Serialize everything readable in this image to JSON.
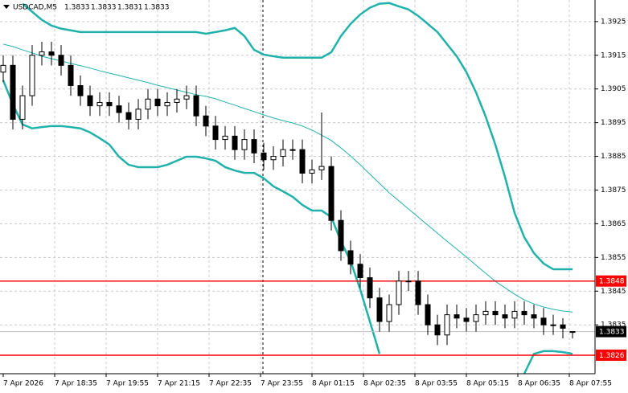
{
  "chart_data": {
    "type": "candlestick",
    "symbol": "USDCAD,M5",
    "x_labels": [
      "7 Apr 2026",
      "7 Apr 18:35",
      "7 Apr 19:55",
      "7 Apr 21:15",
      "7 Apr 22:35",
      "7 Apr 23:55",
      "8 Apr 01:15",
      "8 Apr 02:35",
      "8 Apr 03:55",
      "8 Apr 05:15",
      "8 Apr 06:35",
      "8 Apr 07:55"
    ],
    "open": [
      1.391,
      1.3912,
      1.3896,
      1.3903,
      1.3915,
      1.3916,
      1.3915,
      1.3912,
      1.3906,
      1.3903,
      1.39,
      1.3901,
      1.39,
      1.3898,
      1.3896,
      1.3899,
      1.3902,
      1.39,
      1.3901,
      1.3902,
      1.3903,
      1.3897,
      1.3894,
      1.389,
      1.3891,
      1.3887,
      1.389,
      1.3886,
      1.3884,
      1.3885,
      1.3887,
      1.3887,
      1.388,
      1.3881,
      1.3882,
      1.3866,
      1.3857,
      1.3853,
      1.3849,
      1.3843,
      1.3836,
      1.3841,
      1.3848,
      1.3848,
      1.3841,
      1.3835,
      1.3832,
      1.3838,
      1.3837,
      1.3836,
      1.3838,
      1.3839,
      1.3838,
      1.3837,
      1.3839,
      1.3838,
      1.3837,
      1.3835,
      1.3835,
      1.3833
    ],
    "high": [
      1.3915,
      1.3915,
      1.3906,
      1.3918,
      1.3919,
      1.3919,
      1.3918,
      1.3915,
      1.3909,
      1.3906,
      1.3904,
      1.3904,
      1.3903,
      1.3901,
      1.3902,
      1.3905,
      1.3905,
      1.3904,
      1.3905,
      1.3906,
      1.3906,
      1.39,
      1.3897,
      1.3894,
      1.3894,
      1.3893,
      1.3893,
      1.3889,
      1.3888,
      1.389,
      1.389,
      1.389,
      1.3884,
      1.3898,
      1.3885,
      1.3869,
      1.386,
      1.3856,
      1.3852,
      1.3846,
      1.3844,
      1.3851,
      1.3851,
      1.3851,
      1.3844,
      1.3838,
      1.3841,
      1.3841,
      1.384,
      1.3841,
      1.3842,
      1.3842,
      1.3841,
      1.3842,
      1.3842,
      1.3841,
      1.384,
      1.3838,
      1.3837,
      1.3833
    ],
    "low": [
      1.3907,
      1.3893,
      1.3893,
      1.39,
      1.3912,
      1.3912,
      1.3909,
      1.3903,
      1.39,
      1.3897,
      1.3897,
      1.3897,
      1.3895,
      1.3893,
      1.3893,
      1.3896,
      1.3897,
      1.3897,
      1.3898,
      1.3899,
      1.3894,
      1.3891,
      1.3887,
      1.3887,
      1.3884,
      1.3884,
      1.3883,
      1.3881,
      1.3881,
      1.3882,
      1.3884,
      1.3877,
      1.3877,
      1.3878,
      1.3863,
      1.3854,
      1.385,
      1.3846,
      1.384,
      1.3833,
      1.3833,
      1.3838,
      1.3845,
      1.3838,
      1.3832,
      1.3829,
      1.3829,
      1.3834,
      1.3833,
      1.3833,
      1.3835,
      1.3835,
      1.3834,
      1.3834,
      1.3835,
      1.3834,
      1.3832,
      1.3832,
      1.3831,
      1.3831
    ],
    "close": [
      1.3912,
      1.3896,
      1.3903,
      1.3915,
      1.3916,
      1.3915,
      1.3912,
      1.3906,
      1.3903,
      1.39,
      1.3901,
      1.39,
      1.3898,
      1.3896,
      1.3899,
      1.3902,
      1.39,
      1.3901,
      1.3902,
      1.3903,
      1.3897,
      1.3894,
      1.389,
      1.3891,
      1.3887,
      1.389,
      1.3886,
      1.3884,
      1.3885,
      1.3887,
      1.3887,
      1.388,
      1.3881,
      1.3882,
      1.3866,
      1.3857,
      1.3853,
      1.3849,
      1.3843,
      1.3836,
      1.3841,
      1.3848,
      1.3848,
      1.3841,
      1.3835,
      1.3832,
      1.3838,
      1.3837,
      1.3836,
      1.3838,
      1.3839,
      1.3838,
      1.3837,
      1.3839,
      1.3838,
      1.3837,
      1.3835,
      1.3835,
      1.3834,
      1.3833
    ],
    "bands": [
      {
        "color": "#20b2aa",
        "width": 2.5,
        "values": [
          null,
          null,
          1.39303,
          1.39279,
          1.39255,
          1.39238,
          1.39229,
          1.39224,
          1.39219,
          1.39219,
          1.39219,
          1.39219,
          1.39219,
          1.39219,
          1.39219,
          1.39219,
          1.39219,
          1.39219,
          1.39219,
          1.39219,
          1.39219,
          1.39214,
          1.39219,
          1.39224,
          1.39231,
          1.39207,
          1.39166,
          1.39152,
          1.39147,
          1.39143,
          1.39143,
          1.39143,
          1.39143,
          1.39143,
          1.39159,
          1.39207,
          1.39243,
          1.39271,
          1.39291,
          1.39303,
          1.39305,
          1.39295,
          1.39286,
          1.39267,
          1.39243,
          1.39219,
          1.39183,
          1.39147,
          1.391,
          1.3904,
          1.38968,
          1.38885,
          1.38789,
          1.38682,
          1.3861,
          1.38563,
          1.38532,
          1.38515,
          1.38515,
          1.38515
        ]
      },
      {
        "color": "#20b2aa",
        "width": 1,
        "values": [
          1.39183,
          1.39176,
          1.39166,
          1.39157,
          1.39147,
          1.3914,
          1.39133,
          1.39126,
          1.39119,
          1.39112,
          1.39104,
          1.39097,
          1.3909,
          1.39083,
          1.39076,
          1.39069,
          1.39061,
          1.39054,
          1.39047,
          1.3904,
          1.39033,
          1.39028,
          1.39021,
          1.39011,
          1.39002,
          1.38992,
          1.38983,
          1.38973,
          1.38964,
          1.38956,
          1.38949,
          1.3894,
          1.38928,
          1.38913,
          1.38897,
          1.38875,
          1.38851,
          1.38825,
          1.38797,
          1.3877,
          1.38742,
          1.38718,
          1.38694,
          1.3867,
          1.38646,
          1.38622,
          1.38598,
          1.38575,
          1.38551,
          1.38527,
          1.38503,
          1.38479,
          1.3846,
          1.38441,
          1.38424,
          1.38412,
          1.38403,
          1.38396,
          1.38391,
          1.38388
        ]
      },
      {
        "color": "#20b2aa",
        "width": 2.5,
        "values": [
          1.39076,
          1.39004,
          1.38945,
          1.38933,
          1.38937,
          1.3894,
          1.3894,
          1.38937,
          1.38933,
          1.38921,
          1.38904,
          1.38885,
          1.38849,
          1.38825,
          1.38818,
          1.38818,
          1.38818,
          1.38825,
          1.38837,
          1.38849,
          1.38849,
          1.38844,
          1.38837,
          1.38818,
          1.38808,
          1.38801,
          1.38801,
          1.38785,
          1.38761,
          1.38746,
          1.3873,
          1.38706,
          1.38689,
          1.38689,
          1.3867,
          1.38598,
          1.38539,
          1.38455,
          1.3836,
          1.38264,
          null,
          null,
          null,
          null,
          null,
          null,
          null,
          null,
          null,
          null,
          null,
          null,
          null,
          null,
          1.38205,
          1.38264,
          1.38272,
          1.38272,
          1.38269,
          1.38264
        ]
      }
    ],
    "levels": [
      {
        "value": 1.3848,
        "color": "#ff0000"
      },
      {
        "value": 1.3826,
        "color": "#ff0000"
      }
    ],
    "bid": {
      "value": 1.3833,
      "color": "#000000"
    },
    "ylim": [
      1.38205,
      1.39314
    ],
    "yticks": [
      1.3835,
      1.3845,
      1.3855,
      1.3865,
      1.3875,
      1.3885,
      1.3895,
      1.3905,
      1.3915,
      1.3925
    ],
    "grid": true
  }
}
